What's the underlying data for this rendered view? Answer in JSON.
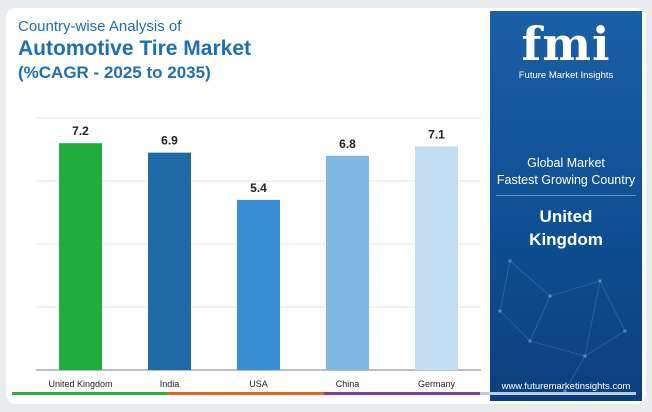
{
  "header": {
    "line1": "Country-wise Analysis of",
    "line2": "Automotive Tire Market",
    "line3": "(%CAGR - 2025 to 2035)"
  },
  "sidebar": {
    "logo_text": "fmi",
    "logo_subtitle": "Future Market Insights",
    "label_line1": "Global Market",
    "label_line2": "Fastest Growing Country",
    "country_line1": "United",
    "country_line2": "Kingdom",
    "website": "www.futuremarketinsights.com"
  },
  "colors": {
    "title": "#1f6fb2",
    "sidebar_bg": "#0f4f93",
    "stripe": [
      "#2eae3e",
      "#e8641d",
      "#7b3fa0",
      "#b8cfe3"
    ]
  },
  "chart_data": {
    "type": "bar",
    "categories": [
      "United Kingdom",
      "India",
      "USA",
      "China",
      "Germany"
    ],
    "values": [
      7.2,
      6.9,
      5.4,
      6.8,
      7.1
    ],
    "value_labels": [
      "7.2",
      "6.9",
      "5.4",
      "6.8",
      "7.1"
    ],
    "bar_colors": [
      "#1fae3b",
      "#1f6aa6",
      "#3a8fd4",
      "#7fb8e2",
      "#c3def2"
    ],
    "ylim": [
      0,
      8
    ],
    "grid": true,
    "xlabel": "",
    "ylabel": ""
  }
}
